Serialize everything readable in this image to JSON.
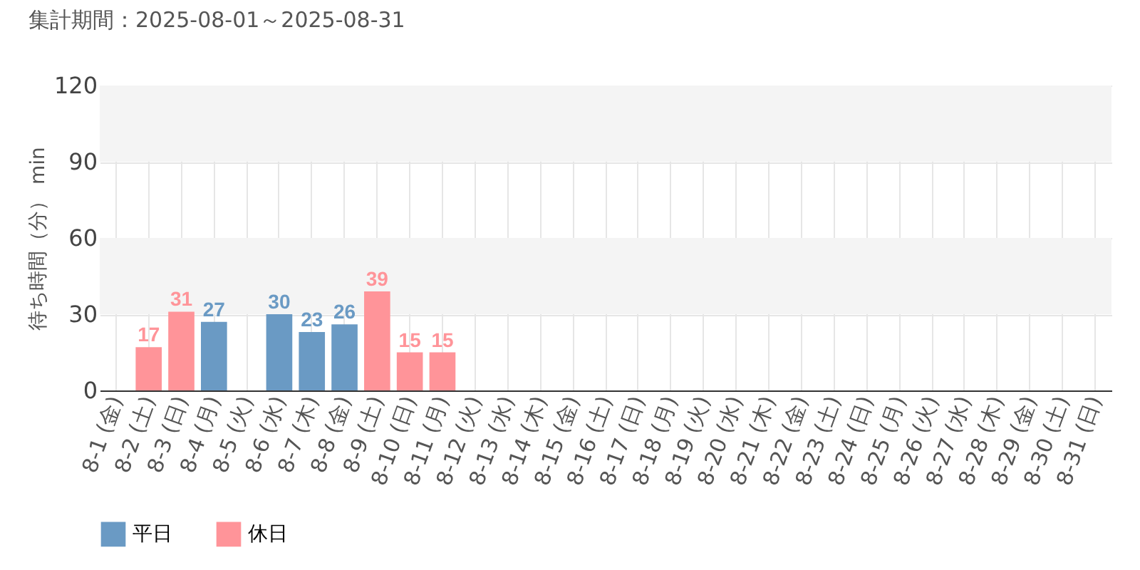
{
  "chart_data": {
    "type": "bar",
    "title": "集計期間：2025-08-01～2025-08-31",
    "ylabel": "待ち時間（分） min",
    "categories": [
      "8-1 (金)",
      "8-2 (土)",
      "8-3 (日)",
      "8-4 (月)",
      "8-5 (火)",
      "8-6 (水)",
      "8-7 (木)",
      "8-8 (金)",
      "8-9 (土)",
      "8-10 (日)",
      "8-11 (月)",
      "8-12 (火)",
      "8-13 (水)",
      "8-14 (木)",
      "8-15 (金)",
      "8-16 (土)",
      "8-17 (日)",
      "8-18 (月)",
      "8-19 (火)",
      "8-20 (水)",
      "8-21 (木)",
      "8-22 (金)",
      "8-23 (土)",
      "8-24 (日)",
      "8-25 (月)",
      "8-26 (火)",
      "8-27 (水)",
      "8-28 (木)",
      "8-29 (金)",
      "8-30 (土)",
      "8-31 (日)"
    ],
    "series": [
      {
        "name": "平日",
        "color": "#6a9ac4",
        "values": [
          null,
          null,
          null,
          27,
          null,
          30,
          23,
          26,
          null,
          null,
          null,
          null,
          null,
          null,
          null,
          null,
          null,
          null,
          null,
          null,
          null,
          null,
          null,
          null,
          null,
          null,
          null,
          null,
          null,
          null,
          null
        ]
      },
      {
        "name": "休日",
        "color": "#ff9499",
        "values": [
          null,
          17,
          31,
          null,
          null,
          null,
          null,
          null,
          39,
          15,
          15,
          null,
          null,
          null,
          null,
          null,
          null,
          null,
          null,
          null,
          null,
          null,
          null,
          null,
          null,
          null,
          null,
          null,
          null,
          null,
          null
        ]
      }
    ],
    "ylim": [
      0,
      120
    ],
    "yticks": [
      0,
      30,
      60,
      90,
      120
    ],
    "grid": true,
    "data_labels": true,
    "legend": "bottom left",
    "bands": [
      {
        "axis": "y",
        "from": 30,
        "to": 60,
        "color": "#f4f4f4"
      },
      {
        "axis": "y",
        "from": 90,
        "to": 120,
        "color": "#f4f4f4"
      }
    ]
  }
}
